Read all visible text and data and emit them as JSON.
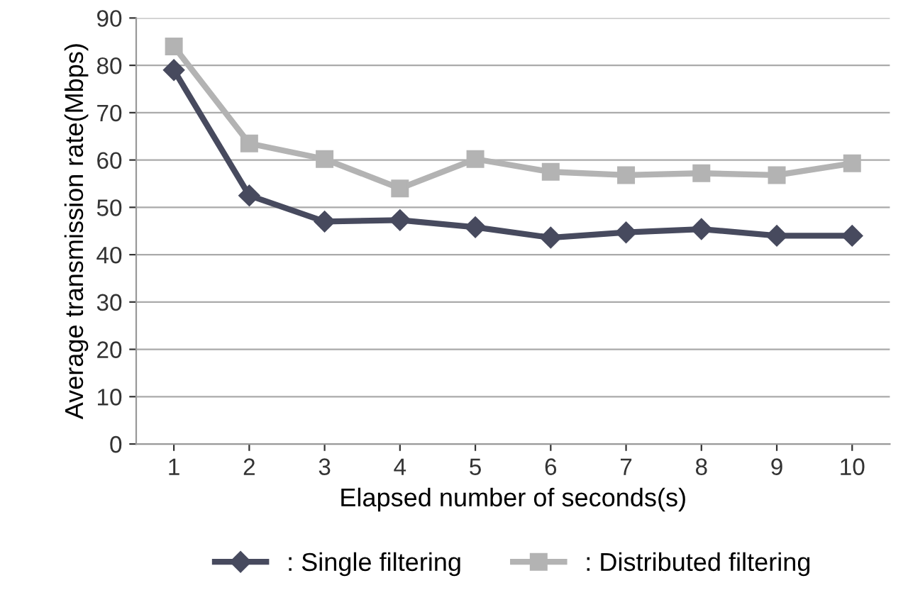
{
  "chart_data": {
    "type": "line",
    "xlabel": "Elapsed number of seconds(s)",
    "ylabel": "Average transmission rate(Mbps)",
    "categories": [
      "1",
      "2",
      "3",
      "4",
      "5",
      "6",
      "7",
      "8",
      "9",
      "10"
    ],
    "series": [
      {
        "name": ": Single filtering",
        "color": "#474a5e",
        "marker": "diamond",
        "values": [
          79,
          52.5,
          47,
          47.3,
          45.8,
          43.6,
          44.7,
          45.4,
          44,
          44
        ]
      },
      {
        "name": ": Distributed filtering",
        "color": "#b3b3b3",
        "marker": "square",
        "values": [
          84,
          63.5,
          60.2,
          54,
          60.2,
          57.5,
          56.8,
          57.2,
          56.8,
          59.3
        ]
      }
    ],
    "ylim": [
      0,
      90
    ],
    "yticks": [
      0,
      10,
      20,
      30,
      40,
      50,
      60,
      70,
      80,
      90
    ],
    "grid": "y",
    "legend": "bottom",
    "line_style": "solid"
  }
}
